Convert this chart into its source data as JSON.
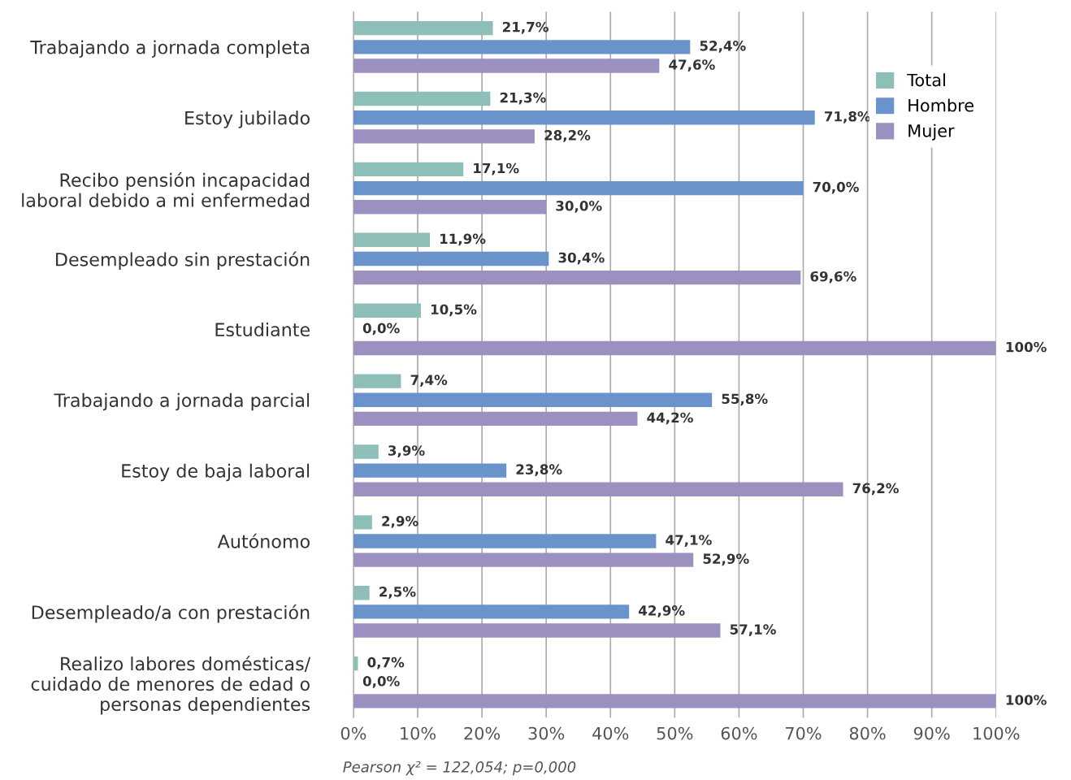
{
  "chart_data": {
    "type": "bar",
    "orientation": "horizontal",
    "categories": [
      "Trabajando a jornada completa",
      "Estoy jubilado",
      "Recibo pensión incapacidad\nlaboral debido a mi enfermedad",
      "Desempleado sin prestación",
      "Estudiante",
      "Trabajando a jornada parcial",
      "Estoy de baja laboral",
      "Autónomo",
      "Desempleado/a con prestación",
      "Realizo labores domésticas/\ncuidado de menores de edad o\npersonas dependientes"
    ],
    "series": [
      {
        "name": "Total",
        "color": "#8dbfb8",
        "values": [
          21.7,
          21.3,
          17.1,
          11.9,
          10.5,
          7.4,
          3.9,
          2.9,
          2.5,
          0.7
        ],
        "value_labels": [
          "21,7%",
          "21,3%",
          "17,1%",
          "11,9%",
          "10,5%",
          "7,4%",
          "3,9%",
          "2,9%",
          "2,5%",
          "0,7%"
        ]
      },
      {
        "name": "Hombre",
        "color": "#6a93cc",
        "values": [
          52.4,
          71.8,
          70.0,
          30.4,
          0.0,
          55.8,
          23.8,
          47.1,
          42.9,
          0.0
        ],
        "value_labels": [
          "52,4%",
          "71,8%",
          "70,0%",
          "30,4%",
          "0,0%",
          "55,8%",
          "23,8%",
          "47,1%",
          "42,9%",
          "0,0%"
        ]
      },
      {
        "name": "Mujer",
        "color": "#9b90c0",
        "values": [
          47.6,
          28.2,
          30.0,
          69.6,
          100,
          44.2,
          76.2,
          52.9,
          57.1,
          100
        ],
        "value_labels": [
          "47,6%",
          "28,2%",
          "30,0%",
          "69,6%",
          "100%",
          "44,2%",
          "76,2%",
          "52,9%",
          "57,1%",
          "100%"
        ]
      }
    ],
    "xlim": [
      0,
      100
    ],
    "xticks": [
      {
        "value": 0,
        "label": "0%"
      },
      {
        "value": 10,
        "label": "10%"
      },
      {
        "value": 20,
        "label": "20%"
      },
      {
        "value": 30,
        "label": "30%"
      },
      {
        "value": 40,
        "label": "40%"
      },
      {
        "value": 50,
        "label": "50%"
      },
      {
        "value": 60,
        "label": "60%"
      },
      {
        "value": 70,
        "label": "70%"
      },
      {
        "value": 80,
        "label": "80%"
      },
      {
        "value": 90,
        "label": "90%"
      },
      {
        "value": 100,
        "label": "100%"
      }
    ],
    "grid": "x",
    "legend": "top right",
    "annotations": [
      "Pearson χ² = 122,054; p=0,000"
    ]
  }
}
